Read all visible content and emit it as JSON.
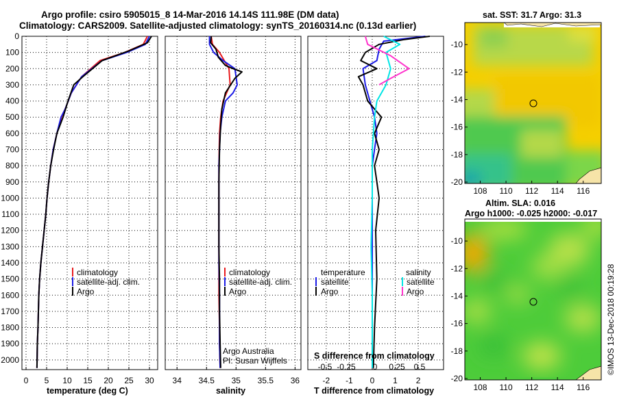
{
  "header": {
    "title_line1": "Argo profile: csiro 5905015_8 14-Mar-2016 14.14S 111.98E (DM data)",
    "title_line2": "Climatology: CARS2009. Satellite-adjusted climatology: synTS_20160314.nc (0.13d earlier)"
  },
  "colors": {
    "climatology": "#e8191c",
    "satellite": "#1a1ae6",
    "argo": "#000000",
    "sat_salinity": "#00e5e5",
    "argo_salinity": "#ff33cc",
    "sst_yellow": "#f5cf00",
    "sla_green": "#3fcf3f"
  },
  "footer": {
    "credit_line1": "Argo Australia",
    "credit_line2": "PI: Susan Wijffels",
    "stamp": "©IMOS 13-Dec-2018 00:19:28"
  },
  "chart_data": [
    {
      "type": "line",
      "panel": "temperature",
      "xlabel": "temperature (deg C)",
      "ylabel": "",
      "xlim": [
        -1,
        32
      ],
      "ylim": [
        0,
        2060
      ],
      "y_reversed": true,
      "xticks": [
        0,
        5,
        10,
        15,
        20,
        25,
        30
      ],
      "yticks": [
        0,
        100,
        200,
        300,
        400,
        500,
        600,
        700,
        800,
        900,
        1000,
        1100,
        1200,
        1300,
        1400,
        1500,
        1600,
        1700,
        1800,
        1900,
        2000
      ],
      "grid": true,
      "legend": [
        "climatology",
        "satellite-adj. clim.",
        "Argo"
      ],
      "legend_position": "bottom-center",
      "series": [
        {
          "name": "climatology",
          "color_key": "climatology",
          "x": [
            29.5,
            28.5,
            24,
            18,
            13.5,
            11,
            9.5,
            8.6,
            7.5,
            6.6,
            6,
            5.5,
            5.1,
            4.8,
            4.4,
            4,
            3.6,
            3.3,
            3.1,
            2.9,
            2.75,
            2.65
          ],
          "y": [
            0,
            50,
            100,
            150,
            250,
            350,
            450,
            500,
            600,
            700,
            800,
            900,
            1000,
            1100,
            1200,
            1300,
            1400,
            1500,
            1600,
            1800,
            1900,
            2050
          ]
        },
        {
          "name": "satellite-adj. clim.",
          "color_key": "satellite",
          "x": [
            30,
            29,
            24.5,
            18.5,
            13.5,
            11,
            9.5,
            8.5,
            7.5,
            6.6,
            6,
            5.5,
            5.1,
            4.8,
            4.4,
            4,
            3.6,
            3.3,
            3.1,
            2.9,
            2.75,
            2.65
          ],
          "y": [
            0,
            50,
            100,
            150,
            250,
            350,
            450,
            500,
            600,
            700,
            800,
            900,
            1000,
            1100,
            1200,
            1300,
            1400,
            1500,
            1600,
            1800,
            1900,
            2050
          ]
        },
        {
          "name": "Argo",
          "color_key": "argo",
          "x": [
            30.5,
            29.5,
            25,
            18.5,
            13.8,
            11.6,
            10.2,
            9,
            7.5,
            6.7,
            6,
            5.5,
            5.1,
            4.8,
            4.4,
            4,
            3.6,
            3.3,
            3.1,
            2.9,
            2.75,
            2.65
          ],
          "y": [
            0,
            40,
            90,
            150,
            250,
            300,
            400,
            500,
            600,
            700,
            800,
            900,
            1000,
            1100,
            1200,
            1300,
            1400,
            1500,
            1600,
            1800,
            1900,
            2050
          ]
        }
      ]
    },
    {
      "type": "line",
      "panel": "salinity",
      "xlabel": "salinity",
      "ylabel": "",
      "xlim": [
        33.8,
        36.1
      ],
      "ylim": [
        0,
        2060
      ],
      "y_reversed": true,
      "xticks": [
        34,
        34.5,
        35,
        35.5,
        36
      ],
      "grid": true,
      "legend": [
        "climatology",
        "satellite-adj. clim.",
        "Argo"
      ],
      "legend_position": "bottom-right",
      "series": [
        {
          "name": "climatology",
          "color_key": "climatology",
          "x": [
            34.58,
            34.6,
            34.72,
            34.8,
            34.88,
            34.9,
            34.84,
            34.78,
            34.74,
            34.72,
            34.71,
            34.71,
            34.71,
            34.71,
            34.71,
            34.72,
            34.72,
            34.73
          ],
          "y": [
            0,
            50,
            100,
            150,
            200,
            300,
            350,
            400,
            500,
            600,
            800,
            1000,
            1200,
            1400,
            1600,
            1800,
            1900,
            2050
          ]
        },
        {
          "name": "satellite-adj. clim.",
          "color_key": "satellite",
          "x": [
            34.55,
            34.55,
            34.62,
            34.78,
            34.98,
            35.02,
            34.95,
            34.82,
            34.76,
            34.73,
            34.71,
            34.71,
            34.71,
            34.71,
            34.72,
            34.72,
            34.72,
            34.73
          ],
          "y": [
            0,
            50,
            100,
            150,
            200,
            300,
            350,
            400,
            500,
            600,
            800,
            1000,
            1200,
            1400,
            1600,
            1800,
            1900,
            2050
          ]
        },
        {
          "name": "Argo",
          "color_key": "argo",
          "x": [
            34.58,
            34.57,
            34.66,
            34.7,
            34.82,
            34.95,
            35.1,
            34.98,
            34.82,
            34.76,
            34.74,
            34.72,
            34.71,
            34.71,
            34.71,
            34.72,
            34.72,
            34.73,
            34.74
          ],
          "y": [
            0,
            40,
            80,
            130,
            180,
            200,
            220,
            260,
            350,
            450,
            550,
            700,
            900,
            1100,
            1300,
            1500,
            1700,
            1900,
            2050
          ]
        }
      ]
    },
    {
      "type": "line",
      "panel": "difference",
      "xlabel": "T difference from climatology",
      "xlabel2": "S difference from climatology",
      "xlim": [
        -2.8,
        3.1
      ],
      "ylim": [
        0,
        2060
      ],
      "y_reversed": true,
      "xticks": [
        -2,
        -1,
        0,
        1,
        2
      ],
      "s_xticks": [
        "-0.5",
        "-0.25",
        "0",
        "0.25",
        "0.5"
      ],
      "grid": true,
      "legend_temperature": {
        "title": "temperature",
        "entries": [
          "satellite",
          "Argo"
        ]
      },
      "legend_salinity": {
        "title": "salinity",
        "entries": [
          "satellite",
          "Argo"
        ]
      },
      "series": [
        {
          "name": "satellite",
          "color_key": "satellite",
          "x": [
            2.3,
            0.5,
            0.3,
            0.2,
            -0.4,
            -0.3,
            -0.1,
            0.1,
            0.2,
            0.1,
            0,
            0,
            0,
            0,
            0,
            0,
            0
          ],
          "y": [
            0,
            30,
            80,
            150,
            200,
            300,
            400,
            500,
            600,
            700,
            800,
            1000,
            1200,
            1400,
            1600,
            1800,
            2050
          ]
        },
        {
          "name": "Argo",
          "color_key": "argo",
          "x": [
            2.5,
            1.4,
            0.3,
            -0.3,
            -0.5,
            0.2,
            -0.6,
            -0.4,
            -0.2,
            0.4,
            0.1,
            0.3,
            0.1,
            0.2,
            0.3,
            0.15,
            0.2,
            0.1,
            0.05
          ],
          "y": [
            0,
            20,
            50,
            100,
            150,
            200,
            250,
            300,
            400,
            500,
            600,
            700,
            800,
            900,
            1000,
            1200,
            1500,
            1800,
            2050
          ]
        },
        {
          "name": "salinity satellite",
          "color_key": "sat_salinity",
          "x": [
            0.5,
            1.2,
            0.6,
            0.8,
            0.6,
            0.2,
            0.1,
            0,
            0,
            -0.05,
            0,
            0,
            0
          ],
          "y": [
            0,
            50,
            100,
            200,
            300,
            400,
            500,
            700,
            1000,
            1300,
            1600,
            1900,
            2050
          ]
        },
        {
          "name": "salinity Argo",
          "color_key": "argo_salinity",
          "x": [
            -0.3,
            -0.2,
            0.8,
            1.6,
            0.8,
            0.3
          ],
          "y": [
            0,
            50,
            120,
            200,
            260,
            300
          ]
        }
      ]
    },
    {
      "type": "heatmap",
      "panel": "sst_map",
      "title": "sat. SST: 31.7 Argo: 31.3",
      "xticks": [
        108,
        110,
        112,
        114,
        116
      ],
      "yticks": [
        -10,
        -12,
        -14,
        -16,
        -18,
        -20
      ],
      "xlim": [
        106.8,
        117.4
      ],
      "ylim": [
        -20.1,
        -8.4
      ],
      "marker": {
        "lon": 111.98,
        "lat": -14.14
      }
    },
    {
      "type": "heatmap",
      "panel": "sla_map",
      "title": "Altim. SLA: 0.016",
      "subtitle": "Argo h1000: -0.025 h2000: -0.017",
      "xticks": [
        108,
        110,
        112,
        114,
        116
      ],
      "yticks": [
        -10,
        -12,
        -14,
        -16,
        -18,
        -20
      ],
      "xlim": [
        106.8,
        117.4
      ],
      "ylim": [
        -20.1,
        -8.4
      ],
      "marker": {
        "lon": 111.98,
        "lat": -14.14
      }
    }
  ]
}
